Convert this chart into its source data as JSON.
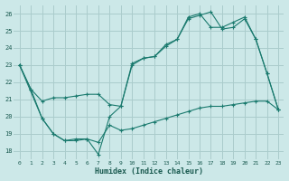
{
  "xlabel": "Humidex (Indice chaleur)",
  "ylabel": "",
  "bg_color": "#cce8e8",
  "grid_color": "#aacccc",
  "line_color": "#1a7a6e",
  "xlim": [
    -0.5,
    23.5
  ],
  "ylim": [
    17.5,
    26.5
  ],
  "xticks": [
    0,
    1,
    2,
    3,
    4,
    5,
    6,
    7,
    8,
    9,
    10,
    11,
    12,
    13,
    14,
    15,
    16,
    17,
    18,
    19,
    20,
    21,
    22,
    23
  ],
  "yticks": [
    18,
    19,
    20,
    21,
    22,
    23,
    24,
    25,
    26
  ],
  "series": [
    {
      "x": [
        0,
        1,
        2,
        3,
        4,
        5,
        6,
        7,
        8,
        9,
        10,
        11,
        12,
        13,
        14,
        15,
        16,
        17,
        18,
        19,
        20,
        21,
        22,
        23
      ],
      "y": [
        23.0,
        21.6,
        19.9,
        19.0,
        18.6,
        18.6,
        18.7,
        17.8,
        20.0,
        20.6,
        23.1,
        23.4,
        23.5,
        24.1,
        24.5,
        25.7,
        25.9,
        26.1,
        25.1,
        25.2,
        25.7,
        24.5,
        22.5,
        20.4
      ]
    },
    {
      "x": [
        0,
        1,
        2,
        3,
        4,
        5,
        6,
        7,
        8,
        9,
        10,
        11,
        12,
        13,
        14,
        15,
        16,
        17,
        18,
        19,
        20,
        21,
        22,
        23
      ],
      "y": [
        23.0,
        21.6,
        20.9,
        21.1,
        21.1,
        21.2,
        21.3,
        21.3,
        20.7,
        20.6,
        23.0,
        23.4,
        23.5,
        24.2,
        24.5,
        25.8,
        26.0,
        25.2,
        25.2,
        25.5,
        25.8,
        24.5,
        22.5,
        20.4
      ]
    },
    {
      "x": [
        0,
        2,
        3,
        4,
        5,
        6,
        7,
        8,
        9,
        10,
        11,
        12,
        13,
        14,
        15,
        16,
        17,
        18,
        19,
        20,
        21,
        22,
        23
      ],
      "y": [
        23.0,
        19.9,
        19.0,
        18.6,
        18.7,
        18.7,
        18.5,
        19.5,
        19.2,
        19.3,
        19.5,
        19.7,
        19.9,
        20.1,
        20.3,
        20.5,
        20.6,
        20.6,
        20.7,
        20.8,
        20.9,
        20.9,
        20.4
      ]
    }
  ]
}
